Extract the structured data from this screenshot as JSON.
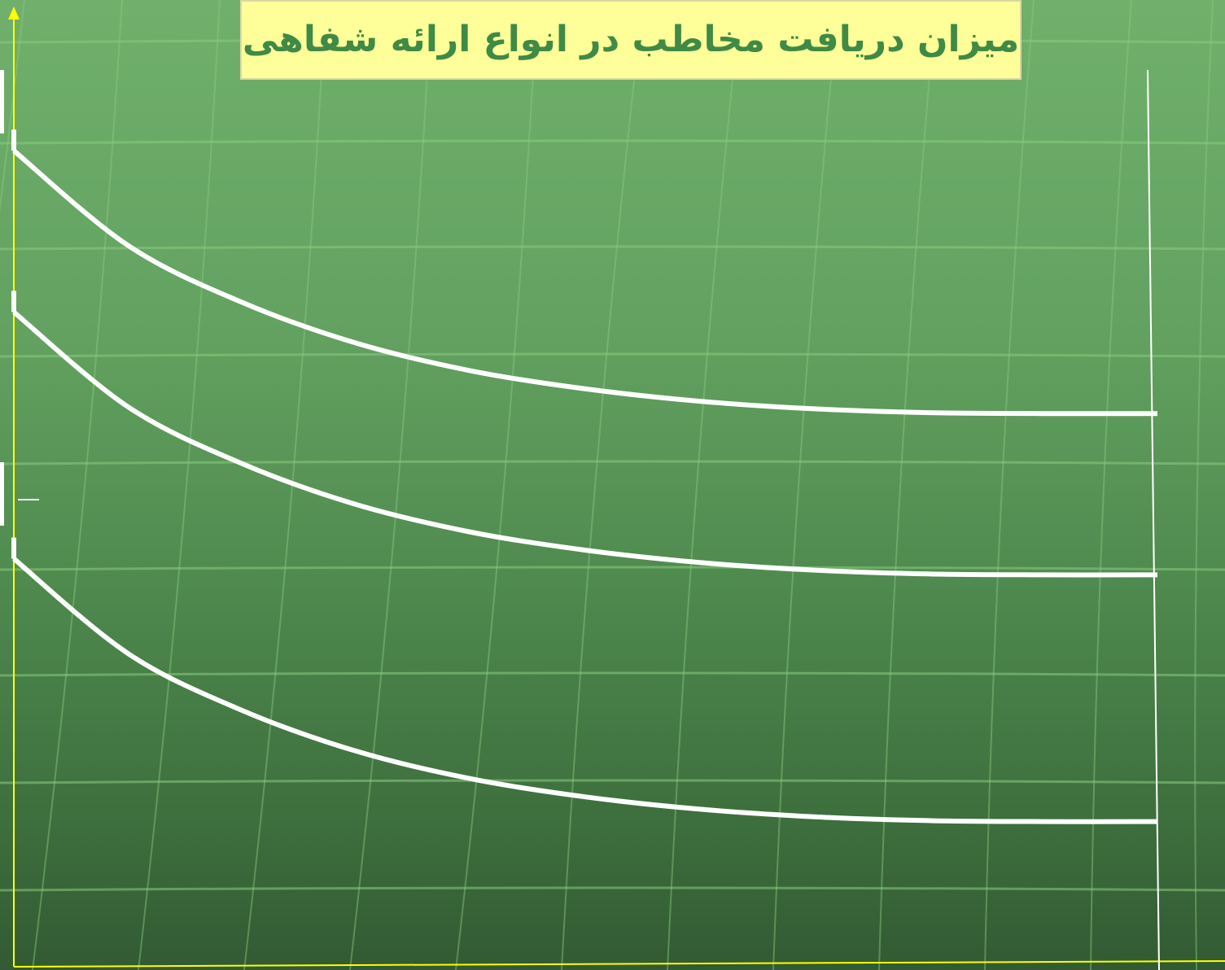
{
  "title": "میزان دریافت مخاطب در انواع ارائه شفاهی",
  "colors": {
    "background_top": "#70b06c",
    "background_bottom": "#325a33",
    "title_box": "#ffff99",
    "title_text": "#3f8a45",
    "axis": "#ffff00",
    "curve": "#ffffff"
  },
  "chart_data": {
    "type": "line",
    "title": "میزان دریافت مخاطب در انواع ارائه شفاهی",
    "xlabel": "",
    "ylabel": "",
    "xlim": [
      0,
      1
    ],
    "ylim": [
      0,
      1
    ],
    "grid": false,
    "legend": "none",
    "series": [
      {
        "x": [
          0,
          0.1,
          0.2,
          0.3,
          0.4,
          0.5,
          0.6,
          0.7,
          0.8,
          0.9,
          1.0
        ],
        "values": [
          0.86,
          0.76,
          0.7,
          0.657,
          0.628,
          0.609,
          0.596,
          0.588,
          0.584,
          0.583,
          0.583
        ]
      },
      {
        "x": [
          0,
          0.1,
          0.2,
          0.3,
          0.4,
          0.5,
          0.6,
          0.7,
          0.8,
          0.9,
          1.0
        ],
        "values": [
          0.69,
          0.59,
          0.53,
          0.487,
          0.458,
          0.439,
          0.426,
          0.418,
          0.414,
          0.413,
          0.413
        ]
      },
      {
        "x": [
          0,
          0.1,
          0.2,
          0.3,
          0.4,
          0.5,
          0.6,
          0.7,
          0.8,
          0.9,
          1.0
        ],
        "values": [
          0.43,
          0.33,
          0.27,
          0.227,
          0.198,
          0.179,
          0.166,
          0.158,
          0.154,
          0.153,
          0.153
        ]
      }
    ]
  }
}
